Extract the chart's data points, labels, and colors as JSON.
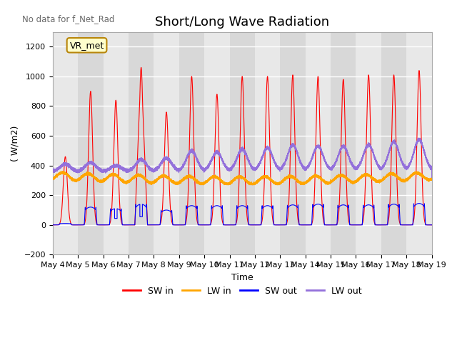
{
  "title": "Short/Long Wave Radiation",
  "top_left_text": "No data for f_Net_Rad",
  "ylabel": "( W/m2)",
  "xlabel": "Time",
  "ylim": [
    -200,
    1300
  ],
  "yticks": [
    -200,
    0,
    200,
    400,
    600,
    800,
    1000,
    1200
  ],
  "xlim": [
    0,
    15
  ],
  "xtick_labels": [
    "May 4",
    "May 5",
    "May 6",
    "May 7",
    "May 8",
    "May 9",
    "May 10",
    "May 11",
    "May 12",
    "May 13",
    "May 14",
    "May 15",
    "May 16",
    "May 17",
    "May 18",
    "May 19"
  ],
  "legend_label": "VR_met",
  "series_labels": [
    "SW in",
    "LW in",
    "SW out",
    "LW out"
  ],
  "series_colors": [
    "red",
    "orange",
    "blue",
    "mediumpurple"
  ],
  "background_color": "#e8e8e8",
  "plot_bg_color": "#f0f0f0",
  "grid_color": "white",
  "title_fontsize": 13,
  "label_fontsize": 9,
  "tick_fontsize": 8,
  "figsize": [
    6.4,
    4.8
  ],
  "dpi": 100
}
